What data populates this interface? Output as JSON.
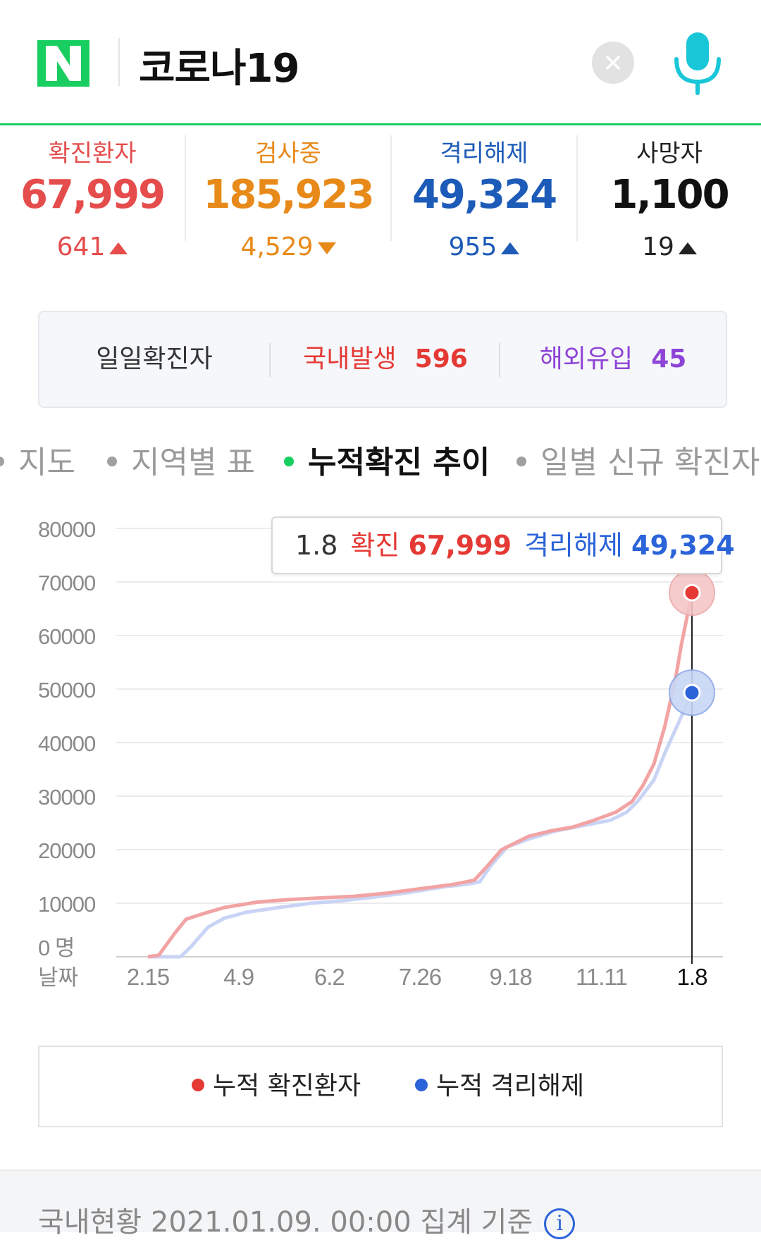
{
  "search": {
    "query": "코로나19"
  },
  "colors": {
    "brand_green": "#19ce60",
    "confirmed": "#e54c4c",
    "testing": "#e88a1a",
    "released": "#1d5bb8",
    "deaths": "#111111",
    "domestic": "#e53935",
    "overseas": "#8e44d6"
  },
  "stats": [
    {
      "label": "확진환자",
      "value": "67,999",
      "delta": "641",
      "direction": "up"
    },
    {
      "label": "검사중",
      "value": "185,923",
      "delta": "4,529",
      "direction": "down"
    },
    {
      "label": "격리해제",
      "value": "49,324",
      "delta": "955",
      "direction": "up"
    },
    {
      "label": "사망자",
      "value": "1,100",
      "delta": "19",
      "direction": "up"
    }
  ],
  "daily": {
    "label": "일일확진자",
    "domestic_label": "국내발생",
    "domestic_value": "596",
    "overseas_label": "해외유입",
    "overseas_value": "45"
  },
  "tabs": [
    {
      "label": "지도",
      "active": false
    },
    {
      "label": "지역별 표",
      "active": false
    },
    {
      "label": "누적확진 추이",
      "active": true
    },
    {
      "label": "일별 신규 확진자",
      "active": false
    }
  ],
  "tooltip": {
    "date": "1.8",
    "confirmed_label": "확진",
    "confirmed_value": "67,999",
    "released_label": "격리해제",
    "released_value": "49,324"
  },
  "chart_data": {
    "type": "line",
    "y_ticks": [
      "80000",
      "70000",
      "60000",
      "50000",
      "40000",
      "30000",
      "20000",
      "10000",
      "0 명"
    ],
    "ylim": [
      0,
      80000
    ],
    "x_label": "날짜",
    "x_ticks": [
      "2.15",
      "4.9",
      "6.2",
      "7.26",
      "9.18",
      "11.11",
      "1.8"
    ],
    "grid": true,
    "legend_position": "bottom",
    "series": [
      {
        "name": "누적 확진환자",
        "color": "#f2a3a3",
        "points": [
          [
            0,
            0
          ],
          [
            0.02,
            300
          ],
          [
            0.05,
            4500
          ],
          [
            0.07,
            7000
          ],
          [
            0.1,
            8000
          ],
          [
            0.14,
            9200
          ],
          [
            0.2,
            10200
          ],
          [
            0.26,
            10700
          ],
          [
            0.32,
            11000
          ],
          [
            0.38,
            11300
          ],
          [
            0.44,
            11900
          ],
          [
            0.5,
            12700
          ],
          [
            0.56,
            13500
          ],
          [
            0.6,
            14300
          ],
          [
            0.62,
            16500
          ],
          [
            0.65,
            20000
          ],
          [
            0.7,
            22500
          ],
          [
            0.74,
            23500
          ],
          [
            0.78,
            24200
          ],
          [
            0.82,
            25500
          ],
          [
            0.86,
            27000
          ],
          [
            0.89,
            29000
          ],
          [
            0.91,
            32000
          ],
          [
            0.93,
            36000
          ],
          [
            0.95,
            43000
          ],
          [
            0.97,
            52000
          ],
          [
            0.98,
            58000
          ],
          [
            0.99,
            63000
          ],
          [
            1.0,
            67999
          ]
        ]
      },
      {
        "name": "누적 격리해제",
        "color": "#c9d4f5",
        "points": [
          [
            0,
            0
          ],
          [
            0.06,
            0
          ],
          [
            0.08,
            2000
          ],
          [
            0.11,
            5500
          ],
          [
            0.14,
            7200
          ],
          [
            0.18,
            8300
          ],
          [
            0.24,
            9200
          ],
          [
            0.3,
            10000
          ],
          [
            0.36,
            10500
          ],
          [
            0.42,
            11200
          ],
          [
            0.48,
            12000
          ],
          [
            0.54,
            13000
          ],
          [
            0.59,
            13600
          ],
          [
            0.61,
            14000
          ],
          [
            0.63,
            17000
          ],
          [
            0.66,
            20500
          ],
          [
            0.7,
            22000
          ],
          [
            0.75,
            23500
          ],
          [
            0.8,
            24500
          ],
          [
            0.85,
            25500
          ],
          [
            0.88,
            27000
          ],
          [
            0.9,
            29000
          ],
          [
            0.93,
            33000
          ],
          [
            0.95,
            38000
          ],
          [
            0.97,
            42500
          ],
          [
            0.99,
            47000
          ],
          [
            1.0,
            49324
          ]
        ]
      }
    ],
    "highlight_x": "1.8",
    "highlight_values": [
      67999,
      49324
    ]
  },
  "legend": [
    {
      "label": "누적 확진환자",
      "color": "#e53935"
    },
    {
      "label": "누적 격리해제",
      "color": "#2b63d9"
    }
  ],
  "footer": {
    "text": "국내현황 2021.01.09. 00:00 집계 기준",
    "info_icon": "info-icon"
  }
}
